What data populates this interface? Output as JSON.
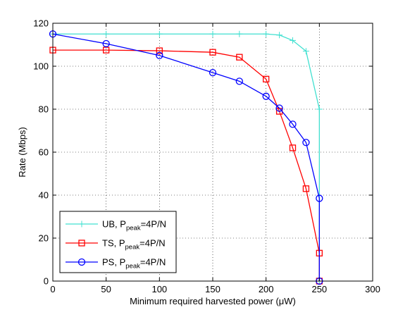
{
  "chart_data": {
    "type": "line",
    "title": "",
    "xlabel": "Minimum required harvested power (μW)",
    "ylabel": "Rate (Mbps)",
    "xlim": [
      0,
      300
    ],
    "ylim": [
      0,
      120
    ],
    "xticks": [
      "0",
      "50",
      "100",
      "150",
      "200",
      "250",
      "300"
    ],
    "yticks": [
      "0",
      "20",
      "40",
      "60",
      "80",
      "100",
      "120"
    ],
    "grid": true,
    "legend_position": "bottom-left",
    "series": [
      {
        "name": "UB, P_peak=4P/N",
        "legend_main": "UB, P",
        "legend_sub": "peak",
        "legend_tail": "=4P/N",
        "color": "#40e0d0",
        "marker": "plus",
        "x": [
          0,
          50,
          100,
          150,
          175,
          200,
          212.5,
          225,
          237.5,
          250,
          250
        ],
        "y": [
          115,
          115,
          115,
          115,
          115,
          115,
          114.5,
          112,
          107,
          80,
          0
        ]
      },
      {
        "name": "TS, P_peak=4P/N",
        "legend_main": "TS, P",
        "legend_sub": "peak",
        "legend_tail": "=4P/N",
        "color": "#ff0000",
        "marker": "square",
        "x": [
          0,
          50,
          100,
          150,
          175,
          200,
          212.5,
          225,
          237.5,
          250,
          250
        ],
        "y": [
          107.5,
          107.5,
          107.2,
          106.5,
          104.2,
          94,
          79,
          62,
          43,
          13,
          0
        ]
      },
      {
        "name": "PS, P_peak=4P/N",
        "legend_main": "PS, P",
        "legend_sub": "peak",
        "legend_tail": "=4P/N",
        "color": "#0000ff",
        "marker": "circle",
        "x": [
          0,
          50,
          100,
          150,
          175,
          200,
          212.5,
          225,
          237.5,
          250,
          250
        ],
        "y": [
          115,
          110.5,
          105,
          97,
          93,
          86,
          80.5,
          73,
          64.5,
          38.5,
          0
        ]
      }
    ]
  }
}
